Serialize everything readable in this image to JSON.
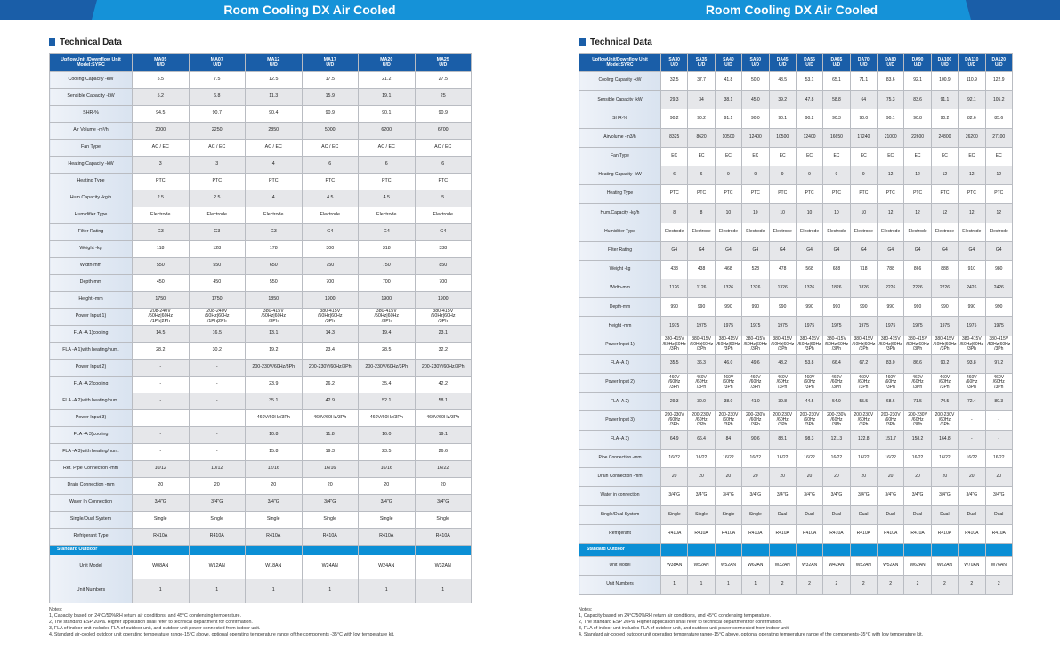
{
  "colors": {
    "header": "#1a5ea8",
    "banner": "#1592d8",
    "outdoor": "#0b8fd5"
  },
  "left": {
    "banner_title": "Room Cooling DX Air Cooled",
    "section_title": "Technical Data",
    "header_label": "UpflowUnit /Downflow Unit\nModel:SYRC",
    "columns": [
      "MA05\nU/D",
      "MA07\nU/D",
      "MA12\nU/D",
      "MA17\nU/D",
      "MA20\nU/D",
      "MA25\nU/D"
    ],
    "rows": [
      {
        "label": "Cooling Capacity -kW",
        "values": [
          "5.5",
          "7.5",
          "12.5",
          "17.5",
          "21.2",
          "27.5"
        ]
      },
      {
        "label": "Sensible Capacity -kW",
        "values": [
          "5.2",
          "6.8",
          "11.3",
          "15.9",
          "19.1",
          "25"
        ]
      },
      {
        "label": "SHR-%",
        "values": [
          "94.5",
          "90.7",
          "90.4",
          "90.9",
          "90.1",
          "90.9"
        ]
      },
      {
        "label": "Air Volume -m³/h",
        "values": [
          "2000",
          "2250",
          "2850",
          "5000",
          "6200",
          "6700"
        ]
      },
      {
        "label": "Fan Type",
        "values": [
          "AC / EC",
          "AC / EC",
          "AC / EC",
          "AC / EC",
          "AC / EC",
          "AC / EC"
        ]
      },
      {
        "label": "Heating Capacity -kW",
        "values": [
          "3",
          "3",
          "4",
          "6",
          "6",
          "6"
        ]
      },
      {
        "label": "Heating Type",
        "values": [
          "PTC",
          "PTC",
          "PTC",
          "PTC",
          "PTC",
          "PTC"
        ]
      },
      {
        "label": "Hum.Capacity -kg/h",
        "values": [
          "2.5",
          "2.5",
          "4",
          "4.5",
          "4.5",
          "5"
        ]
      },
      {
        "label": "Humidifier Type",
        "values": [
          "Electrode",
          "Electrode",
          "Electrode",
          "Electrode",
          "Electrode",
          "Electrode"
        ]
      },
      {
        "label": "Filter Rating",
        "values": [
          "G3",
          "G3",
          "G3",
          "G4",
          "G4",
          "G4"
        ]
      },
      {
        "label": "Weight -kg",
        "values": [
          "118",
          "128",
          "178",
          "300",
          "318",
          "338"
        ]
      },
      {
        "label": "Width-mm",
        "values": [
          "550",
          "550",
          "650",
          "750",
          "750",
          "850"
        ]
      },
      {
        "label": "Depth-mm",
        "values": [
          "450",
          "450",
          "550",
          "700",
          "700",
          "700"
        ]
      },
      {
        "label": "Height -mm",
        "values": [
          "1750",
          "1750",
          "1850",
          "1900",
          "1900",
          "1900"
        ]
      },
      {
        "label": "Power Input 1)",
        "values": [
          "208-240V\n/50Hz|60Hz\n/1Ph|2Ph",
          "208-240V\n/50Hz|60Hz\n/1Ph|2Ph",
          "380-415V\n/50Hz|60Hz\n/3Ph",
          "380-415V\n/50Hz|60Hz\n/3Ph",
          "380-415V\n/50Hz|60Hz\n/3Ph",
          "380-415V\n/50Hz|60Hz\n/3Ph"
        ]
      },
      {
        "label": "FLA -A 1)cooling",
        "values": [
          "14.5",
          "16.5",
          "13.1",
          "14.3",
          "19.4",
          "23.1"
        ]
      },
      {
        "label": "FLA -A 1)with heating/hum.",
        "values": [
          "28.2",
          "30.2",
          "19.2",
          "23.4",
          "28.5",
          "32.2"
        ]
      },
      {
        "label": "Power Input 2)",
        "values": [
          "-",
          "-",
          "200-230V/60Hz/3Ph",
          "200-230V/60Hz/3Ph",
          "200-230V/60Hz/3Ph",
          "200-230V/60Hz/3Ph"
        ]
      },
      {
        "label": "FLA -A 2)cooling",
        "values": [
          "-",
          "-",
          "23.9",
          "26.2",
          "35.4",
          "42.2"
        ]
      },
      {
        "label": "FLA -A 2)with heating/hum.",
        "values": [
          "-",
          "-",
          "35.1",
          "42.9",
          "52.1",
          "58.1"
        ]
      },
      {
        "label": "Power Input 3)",
        "values": [
          "-",
          "-",
          "460V/60Hz/3Ph",
          "460V/60Hz/3Ph",
          "460V/60Hz/3Ph",
          "460V/60Hz/3Ph"
        ]
      },
      {
        "label": "FLA -A 3)cooling",
        "values": [
          "-",
          "-",
          "10.8",
          "11.8",
          "16.0",
          "19.1"
        ]
      },
      {
        "label": "FLA -A 3)with heating/hum.",
        "values": [
          "-",
          "-",
          "15.8",
          "19.3",
          "23.5",
          "26.6"
        ]
      },
      {
        "label": "Ref. Pipe Connection -mm",
        "values": [
          "10/12",
          "10/12",
          "12/16",
          "16/16",
          "16/16",
          "16/22"
        ]
      },
      {
        "label": "Drain Connection -mm",
        "values": [
          "20",
          "20",
          "20",
          "20",
          "20",
          "20"
        ]
      },
      {
        "label": "Water In Connection",
        "values": [
          "3/4\"G",
          "3/4\"G",
          "3/4\"G",
          "3/4\"G",
          "3/4\"G",
          "3/4\"G"
        ]
      },
      {
        "label": "Single/Dual System",
        "values": [
          "Single",
          "Single",
          "Single",
          "Single",
          "Single",
          "Single"
        ]
      },
      {
        "label": "Refrigerant Type",
        "values": [
          "R410A",
          "R410A",
          "R410A",
          "R410A",
          "R410A",
          "R410A"
        ]
      }
    ],
    "outdoor_label": "Standard Outdoor",
    "outdoor_rows": [
      {
        "label": "Unit Model",
        "values": [
          "W08AN",
          "W12AN",
          "W18AN",
          "W24AN",
          "W24AN",
          "W32AN"
        ]
      },
      {
        "label": "Unit Numbers",
        "values": [
          "1",
          "1",
          "1",
          "1",
          "1",
          "1"
        ]
      }
    ],
    "notes": [
      "Notes:",
      "1, Capacity based on 24°C/50%RH return air conditions, and 45°C condensing temperature.",
      "2, The standard ESP 20Pa. Higher application shall refer to technical department for confirmation.",
      "3, FLA of indoor unit includes FLA of outdoor unit, and outdoor unit power connected from indoor unit.",
      "4, Standard air-cooled outdoor unit operating temperature range-15°C above, optional operating temperature range of the components -35°C with low temperature kit."
    ]
  },
  "right": {
    "banner_title": "Room Cooling DX Air Cooled",
    "section_title": "Technical Data",
    "header_label": "UpflowUnit/Downflow Unit\nModel:SYRC",
    "columns": [
      "SA30\nU/D",
      "SA35\nU/D",
      "SA40\nU/D",
      "SA50\nU/D",
      "DA45\nU/D",
      "DA55\nU/D",
      "DA65\nU/D",
      "DA70\nU/D",
      "DA80\nU/D",
      "DA90\nU/D",
      "DA100\nU/D",
      "DA110\nU/D",
      "DA120\nU/D"
    ],
    "rows": [
      {
        "label": "Cooling Capacity -kW",
        "values": [
          "32.5",
          "37.7",
          "41.8",
          "50.0",
          "43.5",
          "53.1",
          "65.1",
          "71.1",
          "83.6",
          "92.1",
          "100.9",
          "110.9",
          "122.9"
        ]
      },
      {
        "label": "Sensible Capacity -kW",
        "values": [
          "29.3",
          "34",
          "38.1",
          "45.0",
          "39.2",
          "47.8",
          "58.8",
          "64",
          "75.3",
          "83.6",
          "91.1",
          "92.1",
          "105.2"
        ]
      },
      {
        "label": "SHR-%",
        "values": [
          "90.2",
          "90.2",
          "91.1",
          "90.0",
          "90.1",
          "90.2",
          "90.3",
          "90.0",
          "90.1",
          "90.8",
          "90.2",
          "82.6",
          "85.6"
        ]
      },
      {
        "label": "Airvolume -m3/h",
        "values": [
          "8325",
          "8620",
          "10500",
          "12400",
          "10500",
          "12400",
          "16650",
          "17240",
          "21000",
          "22600",
          "24800",
          "26200",
          "27100"
        ]
      },
      {
        "label": "Fan Type",
        "values": [
          "EC",
          "EC",
          "EC",
          "EC",
          "EC",
          "EC",
          "EC",
          "EC",
          "EC",
          "EC",
          "EC",
          "EC",
          "EC"
        ]
      },
      {
        "label": "Heating Capacity -kW",
        "values": [
          "6",
          "6",
          "9",
          "9",
          "9",
          "9",
          "9",
          "9",
          "12",
          "12",
          "12",
          "12",
          "12"
        ]
      },
      {
        "label": "Heating Type",
        "values": [
          "PTC",
          "PTC",
          "PTC",
          "PTC",
          "PTC",
          "PTC",
          "PTC",
          "PTC",
          "PTC",
          "PTC",
          "PTC",
          "PTC",
          "PTC"
        ]
      },
      {
        "label": "Hum.Capacity -kg/h",
        "values": [
          "8",
          "8",
          "10",
          "10",
          "10",
          "10",
          "10",
          "10",
          "12",
          "12",
          "12",
          "12",
          "12"
        ]
      },
      {
        "label": "Humidifier Type",
        "values": [
          "Electrode",
          "Electrode",
          "Electrode",
          "Electrode",
          "Electrode",
          "Electrode",
          "Electrode",
          "Electrode",
          "Electrode",
          "Electrode",
          "Electrode",
          "Electrode",
          "Electrode"
        ]
      },
      {
        "label": "Filter Rating",
        "values": [
          "G4",
          "G4",
          "G4",
          "G4",
          "G4",
          "G4",
          "G4",
          "G4",
          "G4",
          "G4",
          "G4",
          "G4",
          "G4"
        ]
      },
      {
        "label": "Weight -kg",
        "values": [
          "433",
          "438",
          "468",
          "528",
          "478",
          "568",
          "688",
          "718",
          "788",
          "866",
          "888",
          "910",
          "980"
        ]
      },
      {
        "label": "Width-mm",
        "values": [
          "1126",
          "1126",
          "1326",
          "1326",
          "1326",
          "1326",
          "1826",
          "1826",
          "2226",
          "2226",
          "2226",
          "2426",
          "2426"
        ]
      },
      {
        "label": "Depth-mm",
        "values": [
          "990",
          "990",
          "990",
          "990",
          "990",
          "990",
          "990",
          "990",
          "990",
          "990",
          "990",
          "990",
          "990"
        ]
      },
      {
        "label": "Height -mm",
        "values": [
          "1975",
          "1975",
          "1975",
          "1975",
          "1975",
          "1975",
          "1975",
          "1975",
          "1975",
          "1975",
          "1975",
          "1975",
          "1975"
        ]
      },
      {
        "label": "Power Input 1)",
        "values": [
          "380-415V\n/50Hz|60Hz\n/3Ph",
          "380-415V\n/50Hz|60Hz\n/3Ph",
          "380-415V\n/50Hz|60Hz\n/3Ph",
          "380-415V\n/50Hz|60Hz\n/3Ph",
          "380-415V\n/50Hz|60Hz\n/3Ph",
          "380-415V\n/50Hz|60Hz\n/3Ph",
          "380-415V\n/50Hz|60Hz\n/3Ph",
          "380-415V\n/50Hz|60Hz\n/3Ph",
          "380-415V\n/50Hz|60Hz\n/3Ph",
          "380-415V\n/50Hz|60Hz\n/3Ph",
          "380-415V\n/50Hz|60Hz\n/3Ph",
          "380-415V\n/50Hz|60Hz\n/3Ph",
          "380-415V\n/50Hz|60Hz\n/3Ph"
        ]
      },
      {
        "label": "FLA -A 1)",
        "values": [
          "35.5",
          "36.3",
          "46.0",
          "49.6",
          "48.2",
          "53.8",
          "66.4",
          "67.2",
          "83.0",
          "86.6",
          "90.2",
          "93.8",
          "97.2"
        ]
      },
      {
        "label": "Power Input 2)",
        "values": [
          "460V\n/60Hz\n/3Ph",
          "460V\n/60Hz\n/3Ph",
          "460V\n/60Hz\n/3Ph",
          "460V\n/60Hz\n/3Ph",
          "460V\n/60Hz\n/3Ph",
          "460V\n/60Hz\n/3Ph",
          "460V\n/60Hz\n/3Ph",
          "460V\n/60Hz\n/3Ph",
          "460V\n/60Hz\n/3Ph",
          "460V\n/60Hz\n/3Ph",
          "460V\n/60Hz\n/3Ph",
          "460V\n/60Hz\n/3Ph",
          "460V\n/60Hz\n/3Ph"
        ]
      },
      {
        "label": "FLA -A 2)",
        "values": [
          "29.3",
          "30.0",
          "38.0",
          "41.0",
          "39.8",
          "44.5",
          "54.9",
          "55.5",
          "68.6",
          "71.5",
          "74.5",
          "72.4",
          "80.3"
        ]
      },
      {
        "label": "Power Input 3)",
        "values": [
          "200-230V\n/60Hz\n/3Ph",
          "200-230V\n/60Hz\n/3Ph",
          "200-230V\n/60Hz\n/3Ph",
          "200-230V\n/60Hz\n/3Ph",
          "200-230V\n/60Hz\n/3Ph",
          "200-230V\n/60Hz\n/3Ph",
          "200-230V\n/60Hz\n/3Ph",
          "200-230V\n/60Hz\n/3Ph",
          "200-230V\n/60Hz\n/3Ph",
          "200-230V\n/60Hz\n/3Ph",
          "200-230V\n/60Hz\n/3Ph",
          "-",
          "-"
        ]
      },
      {
        "label": "FLA -A 3)",
        "values": [
          "64.9",
          "66.4",
          "84",
          "90.6",
          "88.1",
          "98.3",
          "121.3",
          "122.8",
          "151.7",
          "158.2",
          "164.8",
          "-",
          "-"
        ]
      },
      {
        "label": "Pipe Connection -mm",
        "values": [
          "16/22",
          "16/22",
          "16/22",
          "16/22",
          "16/22",
          "16/22",
          "16/22",
          "16/22",
          "16/22",
          "16/22",
          "16/22",
          "16/22",
          "16/22"
        ]
      },
      {
        "label": "Drain Connection -mm",
        "values": [
          "20",
          "20",
          "20",
          "20",
          "20",
          "20",
          "20",
          "20",
          "20",
          "20",
          "20",
          "20",
          "20"
        ]
      },
      {
        "label": "Water in connection",
        "values": [
          "3/4\"G",
          "3/4\"G",
          "3/4\"G",
          "3/4\"G",
          "3/4\"G",
          "3/4\"G",
          "3/4\"G",
          "3/4\"G",
          "3/4\"G",
          "3/4\"G",
          "3/4\"G",
          "3/4\"G",
          "3/4\"G"
        ]
      },
      {
        "label": "Single/Dual System",
        "values": [
          "Single",
          "Single",
          "Single",
          "Single",
          "Dual",
          "Dual",
          "Dual",
          "Dual",
          "Dual",
          "Dual",
          "Dual",
          "Dual",
          "Dual"
        ]
      },
      {
        "label": "Refrigerant",
        "values": [
          "R410A",
          "R410A",
          "R410A",
          "R410A",
          "R410A",
          "R410A",
          "R410A",
          "R410A",
          "R410A",
          "R410A",
          "R410A",
          "R410A",
          "R410A"
        ]
      }
    ],
    "outdoor_label": "Standard Outdoor",
    "outdoor_rows": [
      {
        "label": "Unit Model",
        "values": [
          "W38AN",
          "W52AN",
          "W52AN",
          "W62AN",
          "W32AN",
          "W32AN",
          "W42AN",
          "W52AN",
          "W52AN",
          "W62AN",
          "W62AN",
          "W70AN",
          "W76AN"
        ]
      },
      {
        "label": "Unit Numbers",
        "values": [
          "1",
          "1",
          "1",
          "1",
          "2",
          "2",
          "2",
          "2",
          "2",
          "2",
          "2",
          "2",
          "2"
        ]
      }
    ],
    "notes": [
      "Notes:",
      "1, Capacity based on 24°C/50%RH return air conditions, and 45°C condensing temperature.",
      "2, The standard ESP 20Pa. Higher application shall refer to technical department for confirmation.",
      "3, FLA of indoor unit includes FLA of outdoor unit, and outdoor unit power connected from indoor unit.",
      "4, Standard air-cooled outdoor unit operating temperature range-15°C above, optional operating temperature range of the components-35°C with low temperature kit."
    ]
  }
}
